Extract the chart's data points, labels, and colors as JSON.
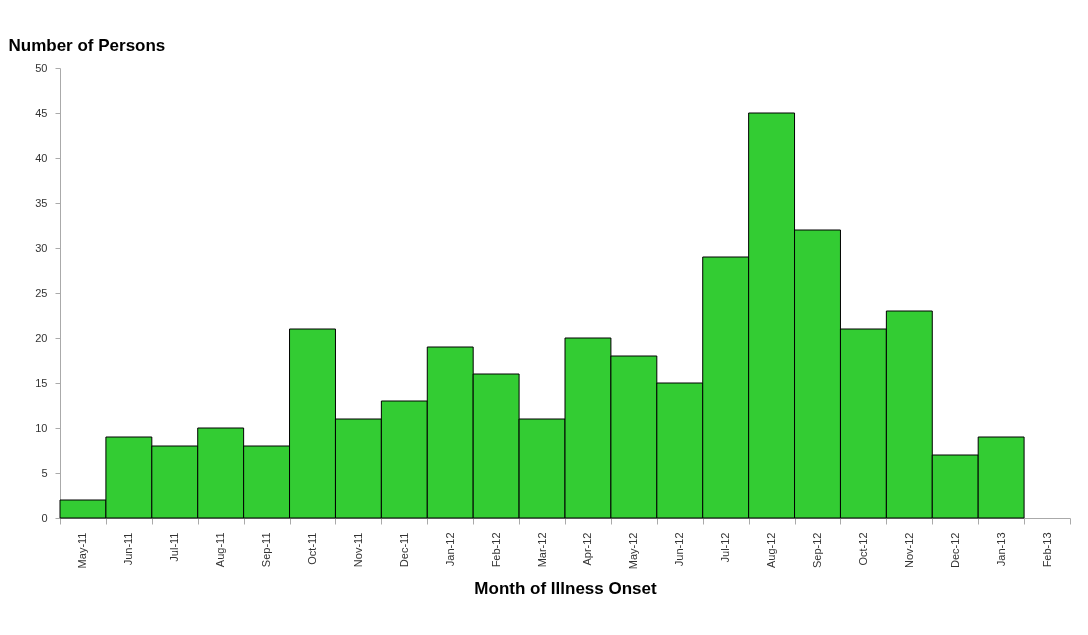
{
  "chart_data": {
    "type": "bar",
    "ylabel": "Number of Persons",
    "xlabel": "Month of Illness Onset",
    "categories": [
      "May-11",
      "Jun-11",
      "Jul-11",
      "Aug-11",
      "Sep-11",
      "Oct-11",
      "Nov-11",
      "Dec-11",
      "Jan-12",
      "Feb-12",
      "Mar-12",
      "Apr-12",
      "May-12",
      "Jun-12",
      "Jul-12",
      "Aug-12",
      "Sep-12",
      "Oct-12",
      "Nov-12",
      "Dec-12",
      "Jan-13",
      "Feb-13"
    ],
    "values": [
      2,
      9,
      8,
      10,
      8,
      21,
      11,
      13,
      19,
      16,
      11,
      20,
      18,
      15,
      29,
      45,
      32,
      21,
      23,
      7,
      9,
      null
    ],
    "color": "#33cc33",
    "ylim": [
      0,
      50
    ],
    "yticks": [
      0,
      5,
      10,
      15,
      20,
      25,
      30,
      35,
      40,
      45,
      50
    ],
    "grid": false
  }
}
